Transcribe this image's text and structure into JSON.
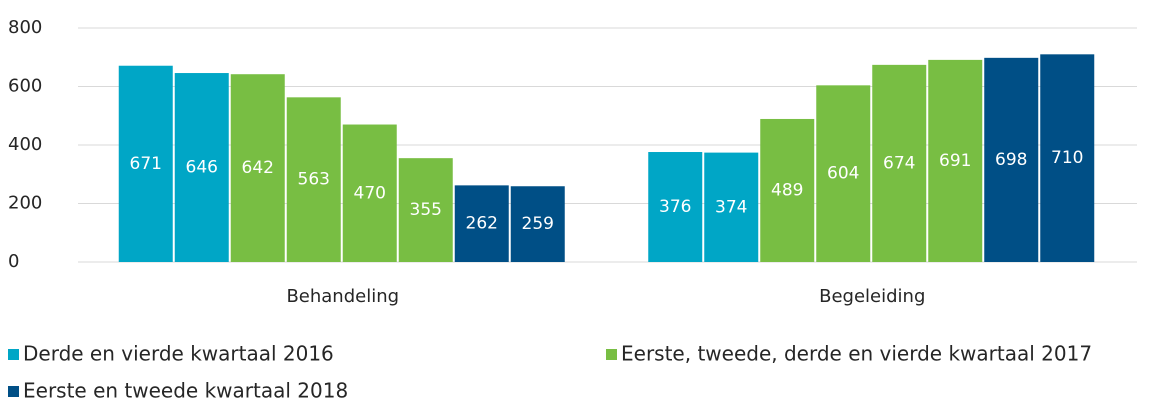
{
  "chart_data": {
    "type": "bar",
    "categories": [
      "Behandeling",
      "Begeleiding"
    ],
    "series": [
      {
        "name": "Derde en vierde kwartaal 2016",
        "color": "#00a6c6",
        "values": [
          [
            671,
            646
          ],
          [
            376,
            374
          ]
        ]
      },
      {
        "name": "Eerste, tweede, derde en vierde kwartaal 2017",
        "color": "#78be43",
        "values": [
          [
            642,
            563,
            470,
            355
          ],
          [
            489,
            604,
            674,
            691
          ]
        ]
      },
      {
        "name": "Eerste en tweede kwartaal 2018",
        "color": "#004f86",
        "values": [
          [
            262,
            259
          ],
          [
            698,
            710
          ]
        ]
      }
    ],
    "ylim": [
      0,
      800
    ],
    "yticks": [
      0,
      200,
      400,
      600,
      800
    ],
    "grid": true
  }
}
